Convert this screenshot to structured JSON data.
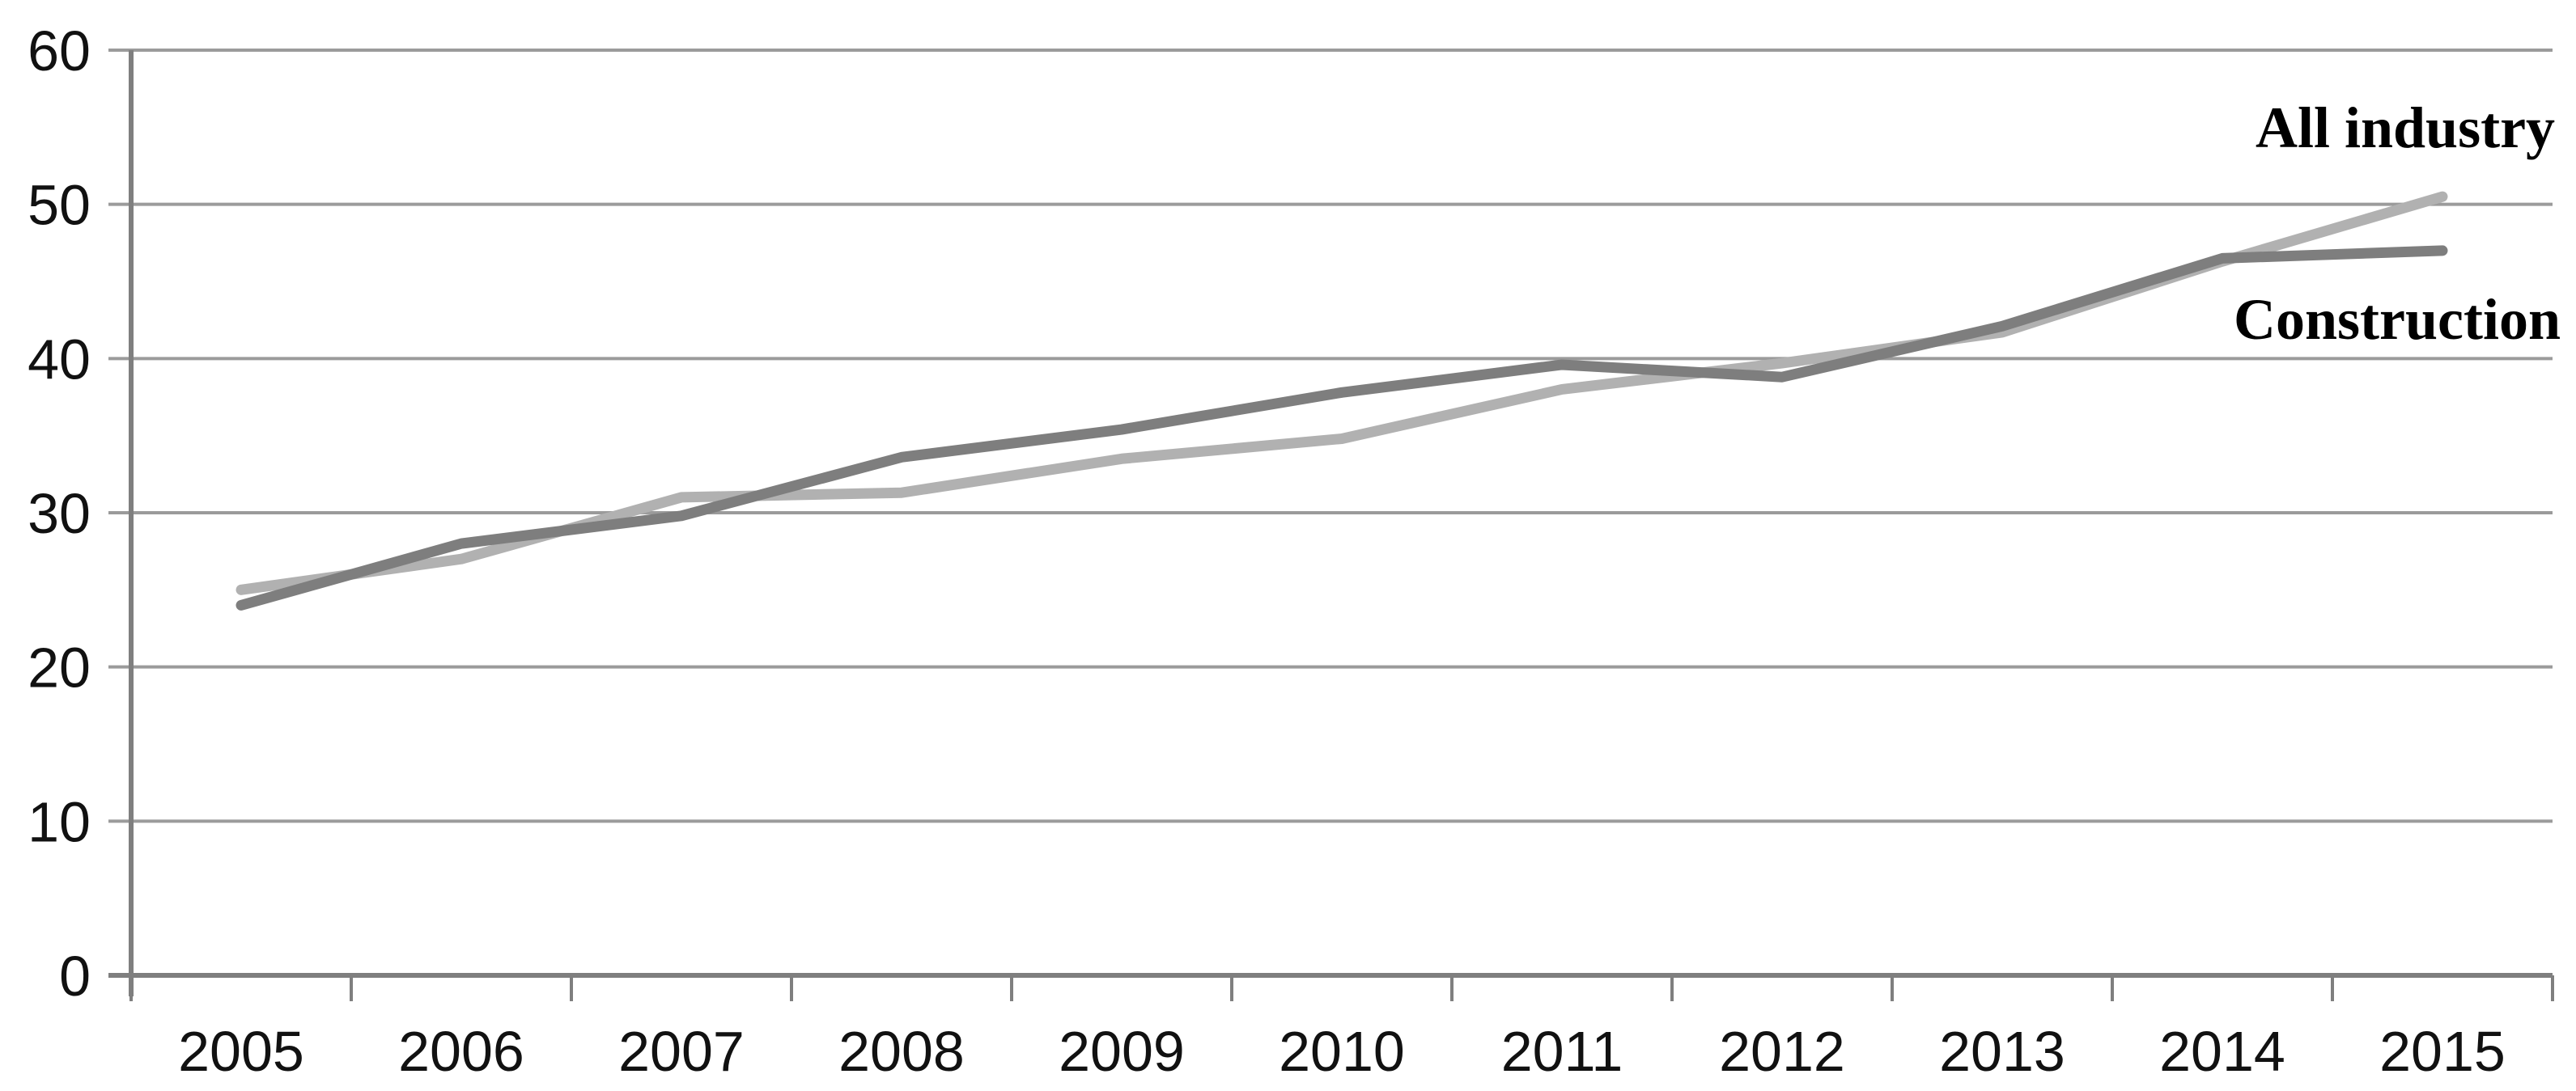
{
  "chart_data": {
    "type": "line",
    "title": "",
    "xlabel": "",
    "ylabel": "",
    "x_labels": [
      "2005",
      "2006",
      "2007",
      "2008",
      "2009",
      "2010",
      "2011",
      "2012",
      "2013",
      "2014",
      "2015"
    ],
    "series": [
      {
        "name": "All industry",
        "values": [
          25,
          27,
          31,
          31.3,
          33.5,
          34.8,
          38,
          39.7,
          41.7,
          46.3,
          50.5
        ],
        "color": "#b1b1b1"
      },
      {
        "name": "Construction",
        "values": [
          24,
          28,
          29.8,
          33.6,
          35.4,
          37.8,
          39.6,
          38.8,
          42.1,
          46.5,
          47
        ],
        "color": "#7e7e7e"
      }
    ],
    "ylim": [
      0,
      60
    ],
    "yticks": [
      0,
      10,
      20,
      30,
      40,
      50,
      60
    ],
    "grid": "horizontal-only",
    "legend_position": "labels-at-line-end-right",
    "colors": {
      "gridline": "#9b9b9b",
      "axis": "#7f7f7f",
      "tick_label": "#111111",
      "series_label": "#000000",
      "background": "#ffffff"
    }
  }
}
